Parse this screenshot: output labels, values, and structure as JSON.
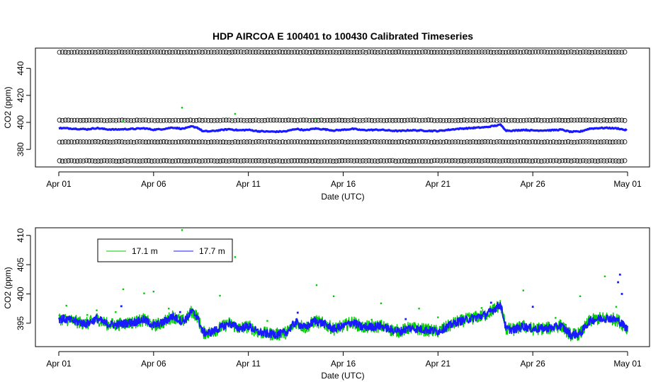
{
  "colors": {
    "green": "#00cc00",
    "blue": "#1a1aff",
    "black": "#000000"
  },
  "chart_data": [
    {
      "type": "scatter",
      "title": "HDP   AIRCOA  E    100401  to  100430   Calibrated Timeseries",
      "xlabel": "Date (UTC)",
      "ylabel": "CO2 (ppm)",
      "x_ticks": [
        "Apr 01",
        "Apr 06",
        "Apr 11",
        "Apr 16",
        "Apr 21",
        "Apr 26",
        "May 01"
      ],
      "x_tick_days": [
        0,
        5,
        10,
        15,
        20,
        25,
        30
      ],
      "xlim_days": [
        0,
        30
      ],
      "y_ticks": [
        380,
        400,
        420,
        440
      ],
      "ylim": [
        367,
        455
      ],
      "grid": false,
      "series": [
        {
          "color": "#000000",
          "marker": "open-circle",
          "values": [
            452,
            401.5,
            385.5,
            371.5
          ]
        },
        {
          "color": "#1a1aff",
          "marker": "dot",
          "level": 395
        },
        {
          "color": "#00cc00",
          "marker": "dot",
          "outliers": [
            [
              6.5,
              410.9
            ],
            [
              9.3,
              406.3
            ],
            [
              3.4,
              400.8
            ],
            [
              13.6,
              401.5
            ]
          ]
        }
      ]
    },
    {
      "type": "line",
      "xlabel": "Date (UTC)",
      "ylabel": "CO2 (ppm)",
      "x_ticks": [
        "Apr 01",
        "Apr 06",
        "Apr 11",
        "Apr 16",
        "Apr 21",
        "Apr 26",
        "May 01"
      ],
      "x_tick_days": [
        0,
        5,
        10,
        15,
        20,
        25,
        30
      ],
      "xlim_days": [
        0,
        30
      ],
      "y_ticks": [
        395,
        400,
        405,
        410
      ],
      "ylim": [
        391,
        411.3
      ],
      "legend_position": "top-left",
      "series": [
        {
          "name": "17.1 m",
          "color": "#00cc00"
        },
        {
          "name": "17.7 m",
          "color": "#1a1aff"
        }
      ],
      "profile_days": [
        0,
        0.5,
        1.0,
        1.5,
        2.0,
        2.5,
        3.0,
        3.5,
        4.0,
        4.5,
        5.0,
        5.5,
        6.0,
        6.5,
        6.8,
        7.0,
        7.3,
        7.6,
        8.0,
        8.5,
        9.0,
        9.5,
        10.0,
        10.5,
        11.0,
        11.5,
        12.0,
        12.5,
        13.0,
        13.5,
        14.0,
        14.5,
        15.0,
        15.5,
        16.0,
        16.5,
        17.0,
        17.5,
        18.0,
        18.5,
        19.0,
        19.5,
        20.0,
        20.5,
        21.0,
        21.5,
        22.0,
        22.5,
        23.0,
        23.3,
        23.6,
        24.0,
        24.5,
        25.0,
        25.5,
        26.0,
        26.5,
        27.0,
        27.5,
        28.0,
        28.5,
        29.0,
        29.5,
        30.0
      ],
      "profile_ppm": [
        395.8,
        395.6,
        395.2,
        394.9,
        395.8,
        394.9,
        394.7,
        395.0,
        395.2,
        395.6,
        394.6,
        395.1,
        396.2,
        395.3,
        396.0,
        397.0,
        396.2,
        393.4,
        393.4,
        394.2,
        395.0,
        394.1,
        394.5,
        393.5,
        393.2,
        393.1,
        393.4,
        395.2,
        394.2,
        395.4,
        394.9,
        394.0,
        394.5,
        395.2,
        394.3,
        394.4,
        394.5,
        393.9,
        393.6,
        394.2,
        394.0,
        393.8,
        393.6,
        394.4,
        395.2,
        395.6,
        396.0,
        396.4,
        397.5,
        398.2,
        394.0,
        393.9,
        394.5,
        394.0,
        394.1,
        394.2,
        394.6,
        393.0,
        393.2,
        395.4,
        395.8,
        395.9,
        395.5,
        394.0
      ],
      "outliers_green": [
        [
          6.5,
          410.9
        ],
        [
          9.3,
          406.3
        ],
        [
          3.4,
          400.8
        ],
        [
          13.6,
          401.5
        ],
        [
          14.5,
          399.6
        ],
        [
          4.5,
          400.1
        ],
        [
          5.0,
          400.4
        ],
        [
          8.5,
          399.7
        ],
        [
          28.8,
          403.0
        ],
        [
          27.5,
          399.6
        ],
        [
          24.5,
          400.6
        ],
        [
          17.0,
          398.4
        ],
        [
          19.0,
          397.5
        ],
        [
          2.0,
          397.2
        ],
        [
          1.5,
          396.4
        ],
        [
          0.4,
          398.0
        ],
        [
          3.0,
          396.9
        ],
        [
          5.8,
          397.5
        ],
        [
          11.0,
          395.4
        ],
        [
          16.5,
          395.6
        ],
        [
          20.0,
          396.0
        ],
        [
          22.3,
          397.6
        ],
        [
          26.2,
          395.9
        ],
        [
          29.4,
          397.8
        ]
      ],
      "outliers_blue": [
        [
          29.6,
          403.3
        ],
        [
          29.5,
          402.0
        ],
        [
          29.7,
          400.0
        ],
        [
          22.8,
          398.5
        ],
        [
          25.0,
          397.8
        ],
        [
          6.4,
          396.9
        ],
        [
          3.3,
          397.9
        ],
        [
          12.6,
          396.8
        ],
        [
          18.3,
          395.7
        ]
      ]
    }
  ],
  "legend": {
    "items": [
      {
        "label": "17.1 m"
      },
      {
        "label": "17.7 m"
      }
    ]
  }
}
